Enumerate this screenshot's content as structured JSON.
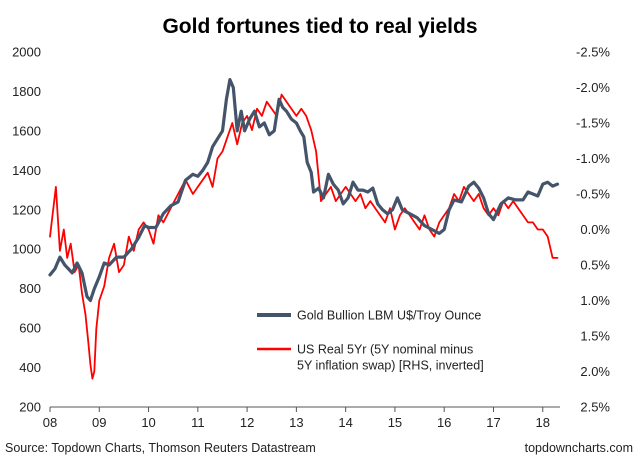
{
  "chart_data": {
    "type": "line",
    "title": "Gold fortunes tied to real yields",
    "xlabel": "",
    "ylabel": "",
    "x_tick_labels": [
      "08",
      "09",
      "10",
      "11",
      "12",
      "13",
      "14",
      "15",
      "16",
      "17",
      "18"
    ],
    "x_ticks": [
      2008,
      2009,
      2010,
      2011,
      2012,
      2013,
      2014,
      2015,
      2016,
      2017,
      2018
    ],
    "xlim": [
      2008.0,
      2018.35
    ],
    "y_left": {
      "ylim": [
        200,
        2000
      ],
      "tick_labels": [
        "200",
        "400",
        "600",
        "800",
        "1000",
        "1200",
        "1400",
        "1600",
        "1800",
        "2000"
      ],
      "ticks": [
        200,
        400,
        600,
        800,
        1000,
        1200,
        1400,
        1600,
        1800,
        2000
      ]
    },
    "y_right": {
      "ylim": [
        2.5,
        -2.5
      ],
      "inverted": true,
      "tick_labels": [
        "2.5%",
        "2.0%",
        "1.5%",
        "1.0%",
        "0.5%",
        "0.0%",
        "-0.5%",
        "-1.0%",
        "-1.5%",
        "-2.0%",
        "-2.5%"
      ],
      "ticks": [
        2.5,
        2.0,
        1.5,
        1.0,
        0.5,
        0.0,
        -0.5,
        -1.0,
        -1.5,
        -2.0,
        -2.5
      ]
    },
    "legend_position": "center-right",
    "grid": false,
    "series": [
      {
        "name": "Gold Bullion LBM U$/Troy Ounce",
        "axis": "left",
        "color": "#44546a",
        "x": [
          2008.0,
          2008.1,
          2008.2,
          2008.3,
          2008.45,
          2008.55,
          2008.65,
          2008.75,
          2008.82,
          2008.9,
          2009.0,
          2009.1,
          2009.2,
          2009.35,
          2009.5,
          2009.65,
          2009.8,
          2009.92,
          2010.0,
          2010.15,
          2010.3,
          2010.45,
          2010.6,
          2010.75,
          2010.9,
          2011.0,
          2011.1,
          2011.2,
          2011.3,
          2011.4,
          2011.5,
          2011.58,
          2011.65,
          2011.72,
          2011.8,
          2011.88,
          2011.95,
          2012.05,
          2012.15,
          2012.25,
          2012.35,
          2012.45,
          2012.55,
          2012.65,
          2012.72,
          2012.8,
          2012.9,
          2013.0,
          2013.08,
          2013.15,
          2013.22,
          2013.3,
          2013.35,
          2013.45,
          2013.55,
          2013.65,
          2013.75,
          2013.85,
          2013.95,
          2014.05,
          2014.15,
          2014.25,
          2014.35,
          2014.45,
          2014.55,
          2014.65,
          2014.75,
          2014.85,
          2014.95,
          2015.05,
          2015.15,
          2015.3,
          2015.45,
          2015.6,
          2015.75,
          2015.9,
          2016.0,
          2016.1,
          2016.2,
          2016.35,
          2016.5,
          2016.6,
          2016.7,
          2016.8,
          2016.9,
          2017.0,
          2017.15,
          2017.3,
          2017.45,
          2017.6,
          2017.7,
          2017.8,
          2017.9,
          2018.0,
          2018.1,
          2018.2,
          2018.3
        ],
        "y": [
          870,
          900,
          960,
          920,
          880,
          930,
          880,
          760,
          740,
          800,
          860,
          930,
          920,
          960,
          960,
          1000,
          1060,
          1120,
          1110,
          1110,
          1180,
          1220,
          1240,
          1350,
          1380,
          1370,
          1400,
          1440,
          1520,
          1560,
          1600,
          1760,
          1860,
          1820,
          1600,
          1700,
          1600,
          1660,
          1700,
          1620,
          1640,
          1580,
          1600,
          1760,
          1720,
          1700,
          1660,
          1640,
          1600,
          1570,
          1440,
          1390,
          1290,
          1310,
          1260,
          1380,
          1330,
          1300,
          1230,
          1260,
          1340,
          1300,
          1300,
          1290,
          1310,
          1230,
          1200,
          1180,
          1200,
          1260,
          1200,
          1180,
          1160,
          1120,
          1100,
          1080,
          1100,
          1200,
          1250,
          1240,
          1320,
          1340,
          1310,
          1260,
          1180,
          1150,
          1230,
          1260,
          1250,
          1250,
          1290,
          1280,
          1270,
          1330,
          1340,
          1320,
          1330
        ]
      },
      {
        "name": "US Real 5Yr (5Y nominal minus 5Y inflation swap) [RHS, inverted]",
        "axis": "right",
        "color": "#ff0000",
        "x": [
          2008.0,
          2008.05,
          2008.12,
          2008.2,
          2008.28,
          2008.35,
          2008.42,
          2008.5,
          2008.58,
          2008.65,
          2008.72,
          2008.78,
          2008.82,
          2008.86,
          2008.9,
          2008.94,
          2009.0,
          2009.1,
          2009.2,
          2009.3,
          2009.4,
          2009.5,
          2009.6,
          2009.7,
          2009.8,
          2009.9,
          2010.0,
          2010.1,
          2010.2,
          2010.3,
          2010.45,
          2010.6,
          2010.75,
          2010.9,
          2011.0,
          2011.1,
          2011.2,
          2011.3,
          2011.4,
          2011.5,
          2011.6,
          2011.7,
          2011.8,
          2011.9,
          2012.0,
          2012.1,
          2012.2,
          2012.3,
          2012.4,
          2012.5,
          2012.6,
          2012.7,
          2012.8,
          2012.9,
          2013.0,
          2013.1,
          2013.2,
          2013.3,
          2013.4,
          2013.5,
          2013.6,
          2013.7,
          2013.8,
          2013.9,
          2014.0,
          2014.1,
          2014.2,
          2014.3,
          2014.4,
          2014.5,
          2014.6,
          2014.7,
          2014.8,
          2014.9,
          2015.0,
          2015.1,
          2015.2,
          2015.3,
          2015.4,
          2015.5,
          2015.6,
          2015.7,
          2015.8,
          2015.9,
          2016.0,
          2016.1,
          2016.2,
          2016.3,
          2016.4,
          2016.5,
          2016.6,
          2016.7,
          2016.8,
          2016.9,
          2017.0,
          2017.1,
          2017.2,
          2017.3,
          2017.4,
          2017.5,
          2017.6,
          2017.7,
          2017.8,
          2017.9,
          2018.0,
          2018.1,
          2018.2,
          2018.3
        ],
        "y": [
          0.1,
          -0.2,
          -0.6,
          0.3,
          0.0,
          0.4,
          0.2,
          0.6,
          0.5,
          0.9,
          1.2,
          1.6,
          1.9,
          2.1,
          2.0,
          1.4,
          1.0,
          0.8,
          0.4,
          0.2,
          0.6,
          0.5,
          0.1,
          0.3,
          0.0,
          -0.1,
          0.0,
          0.2,
          -0.2,
          -0.1,
          -0.3,
          -0.5,
          -0.7,
          -0.5,
          -0.6,
          -0.7,
          -0.8,
          -0.6,
          -1.0,
          -1.1,
          -1.3,
          -1.5,
          -1.2,
          -1.5,
          -1.6,
          -1.4,
          -1.7,
          -1.6,
          -1.8,
          -1.7,
          -1.6,
          -1.9,
          -1.8,
          -1.7,
          -1.6,
          -1.7,
          -1.6,
          -1.4,
          -1.1,
          -0.4,
          -0.5,
          -0.6,
          -0.4,
          -0.5,
          -0.6,
          -0.5,
          -0.4,
          -0.5,
          -0.3,
          -0.4,
          -0.3,
          -0.2,
          -0.1,
          -0.3,
          0.0,
          -0.2,
          -0.3,
          -0.2,
          -0.1,
          0.0,
          -0.2,
          0.0,
          0.1,
          -0.1,
          -0.2,
          -0.3,
          -0.5,
          -0.4,
          -0.6,
          -0.5,
          -0.4,
          -0.5,
          -0.3,
          -0.2,
          -0.3,
          -0.2,
          -0.4,
          -0.3,
          -0.4,
          -0.3,
          -0.2,
          -0.1,
          -0.1,
          0.0,
          0.0,
          0.1,
          0.4,
          0.4
        ]
      }
    ]
  },
  "legend": {
    "items": [
      {
        "lines": [
          "Gold Bullion LBM U$/Troy Ounce"
        ],
        "color": "#44546a"
      },
      {
        "lines": [
          "US Real 5Yr (5Y nominal minus",
          "5Y inflation swap) [RHS, inverted]"
        ],
        "color": "#ff0000"
      }
    ]
  },
  "footer": {
    "source": "Source: Topdown Charts, Thomson Reuters Datastream",
    "site": "topdowncharts.com"
  }
}
